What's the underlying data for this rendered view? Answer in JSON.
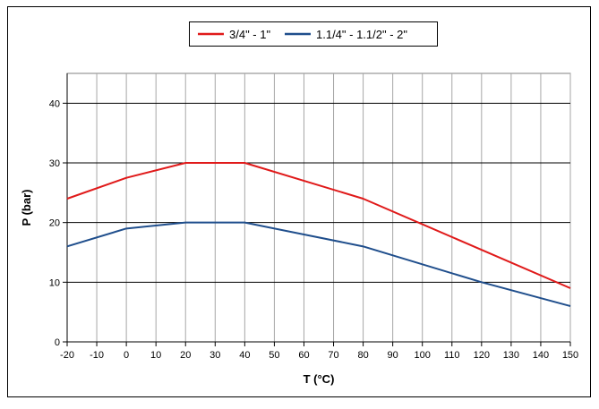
{
  "chart_data": {
    "type": "line",
    "title": "",
    "xlabel": "T (°C)",
    "ylabel": "P (bar)",
    "xlim": [
      -20,
      150
    ],
    "ylim": [
      0,
      45
    ],
    "xticks": [
      -20,
      -10,
      0,
      10,
      20,
      30,
      40,
      50,
      60,
      70,
      80,
      90,
      100,
      110,
      120,
      130,
      140,
      150
    ],
    "yticks": [
      0,
      10,
      20,
      30,
      40
    ],
    "grid": true,
    "legend_position": "top-center",
    "series": [
      {
        "name": "3/4\" - 1\"",
        "color": "#e01a1a",
        "x": [
          -20,
          0,
          20,
          40,
          80,
          150
        ],
        "y": [
          24,
          27.5,
          30,
          30,
          24,
          9
        ]
      },
      {
        "name": "1.1/4\" - 1.1/2\" - 2\"",
        "color": "#1f4e8c",
        "x": [
          -20,
          0,
          20,
          40,
          80,
          120,
          150
        ],
        "y": [
          16,
          19,
          20,
          20,
          16,
          10,
          6
        ]
      }
    ]
  }
}
